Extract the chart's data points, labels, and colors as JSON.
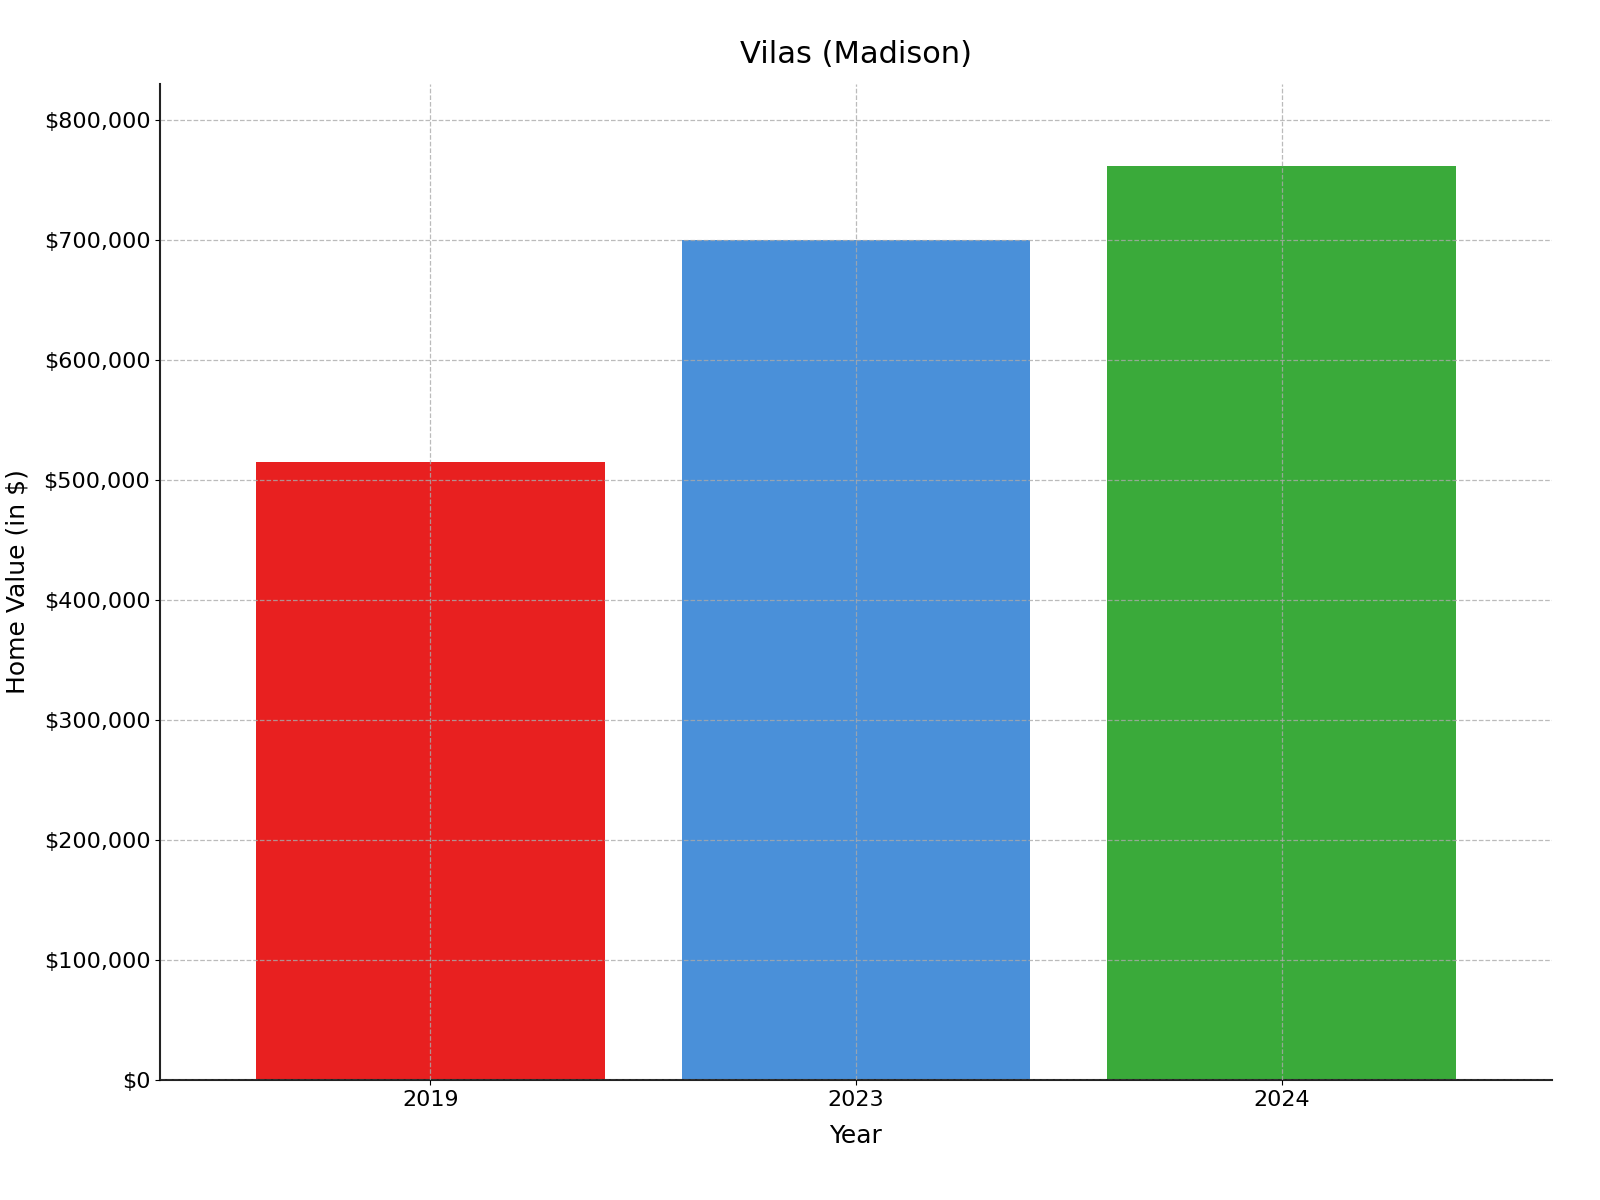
{
  "title": "Vilas (Madison)",
  "categories": [
    "2019",
    "2023",
    "2024"
  ],
  "values": [
    515000,
    700000,
    762000
  ],
  "bar_colors": [
    "#e82020",
    "#4a90d9",
    "#3aaa3a"
  ],
  "xlabel": "Year",
  "ylabel": "Home Value (in $)",
  "ylim": [
    0,
    830000
  ],
  "yticks": [
    0,
    100000,
    200000,
    300000,
    400000,
    500000,
    600000,
    700000,
    800000
  ],
  "background_color": "#ffffff",
  "grid_color": "#aaaaaa",
  "title_fontsize": 22,
  "label_fontsize": 18,
  "tick_fontsize": 16,
  "bar_width": 0.82,
  "edge_color": "none"
}
